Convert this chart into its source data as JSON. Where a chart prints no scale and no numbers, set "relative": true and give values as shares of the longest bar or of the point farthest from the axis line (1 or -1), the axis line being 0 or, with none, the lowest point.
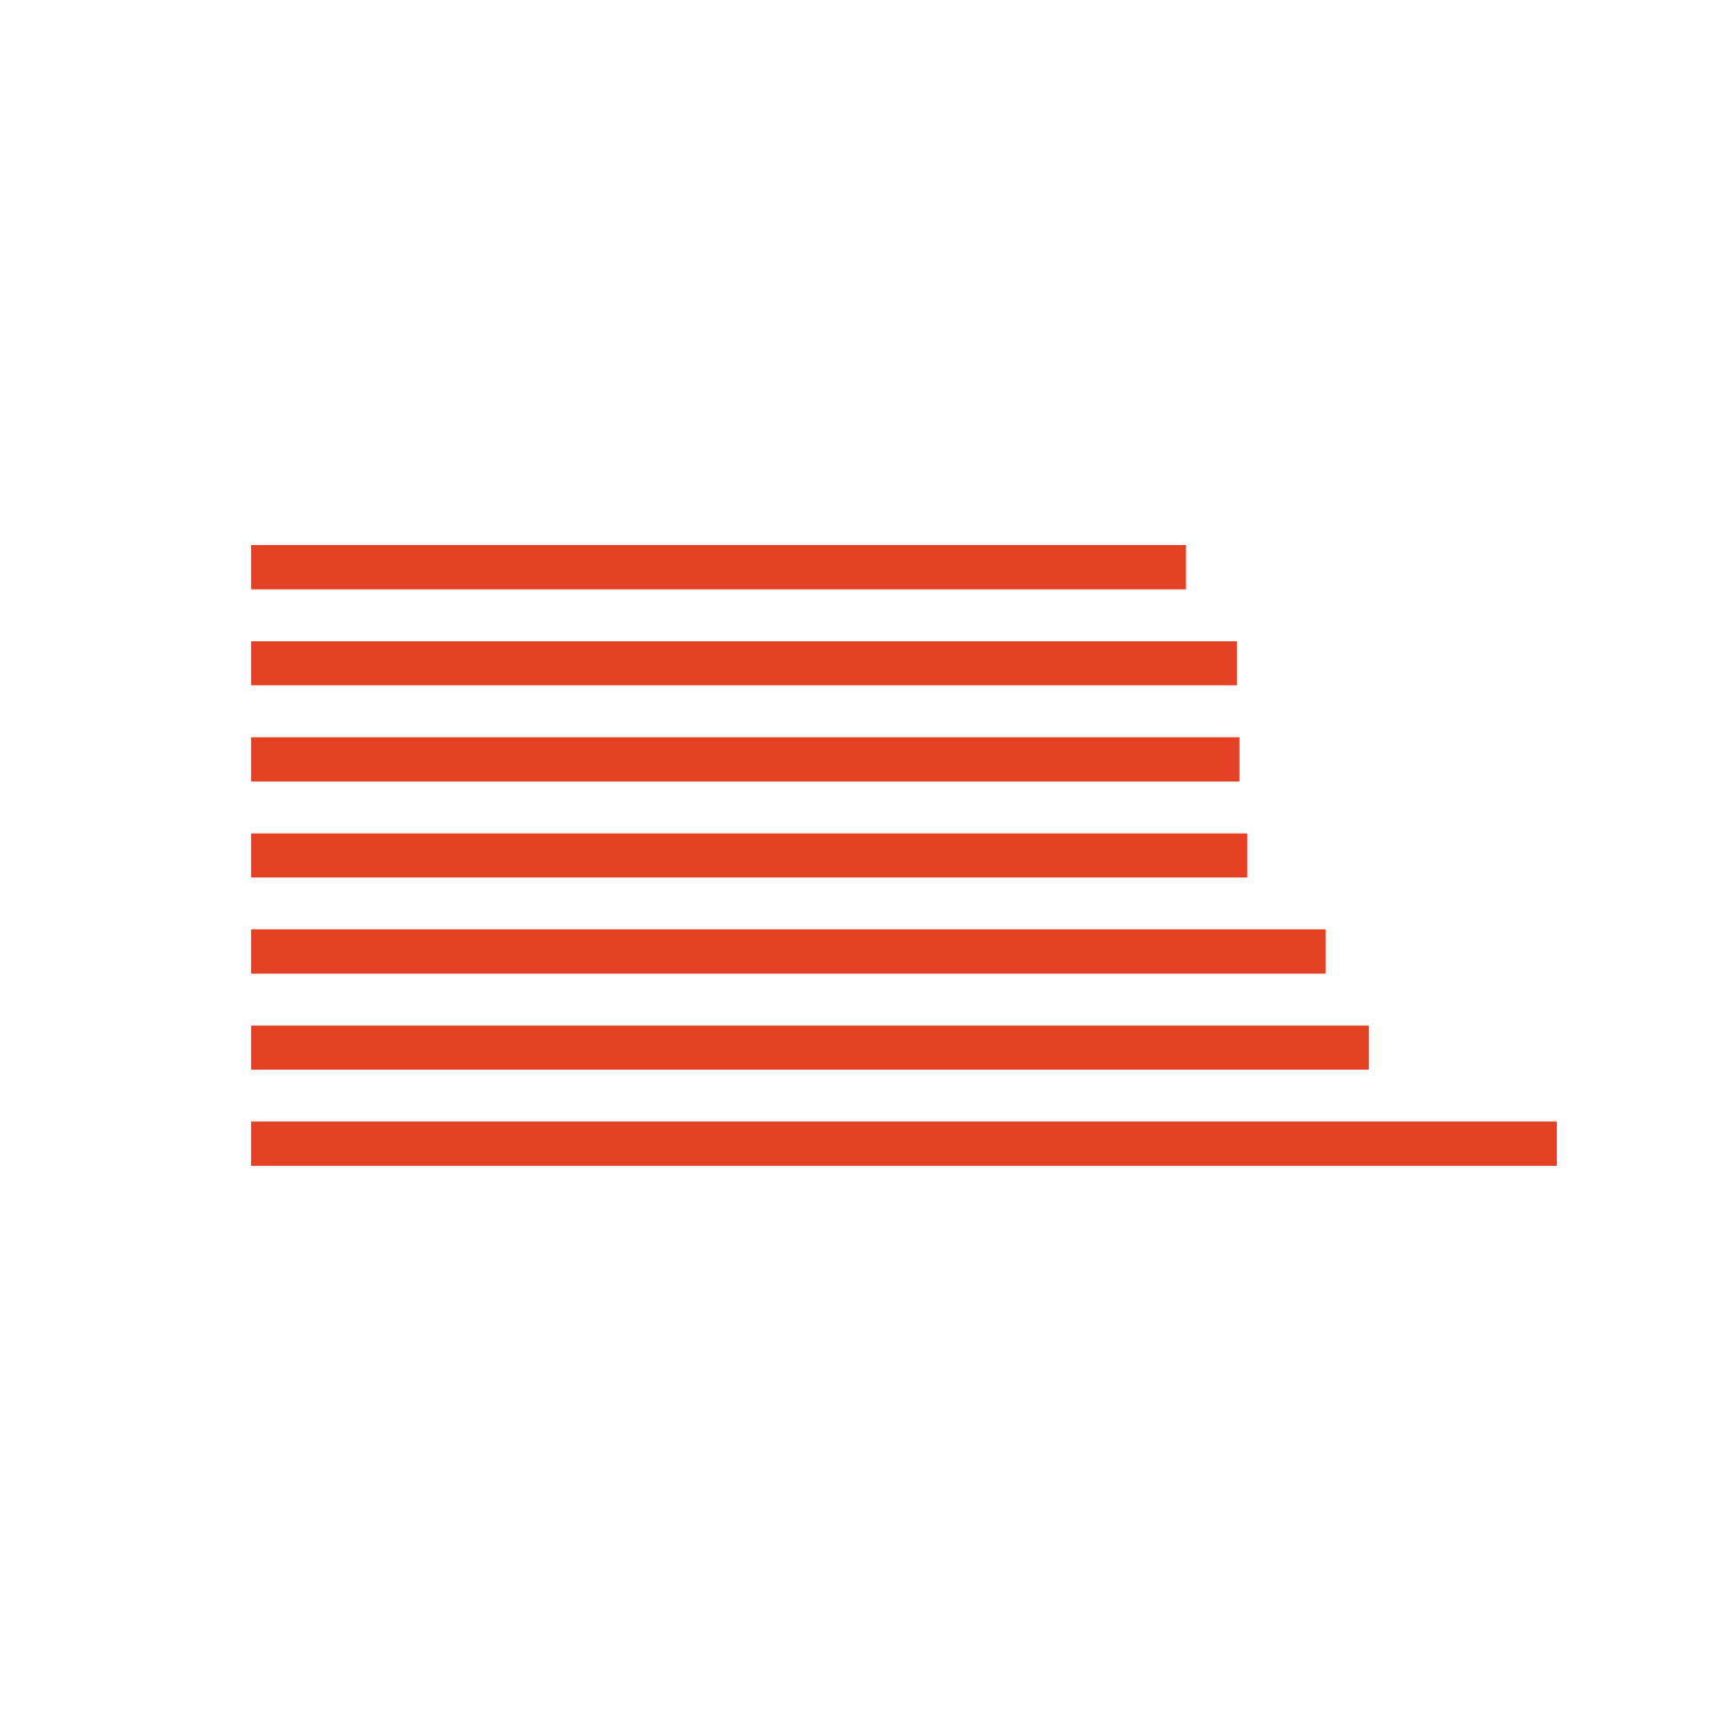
{
  "chart_data": {
    "type": "bar",
    "orientation": "horizontal",
    "relative": true,
    "categories": [
      null,
      null,
      null,
      null,
      null,
      null,
      null
    ],
    "values": [
      0.716,
      0.755,
      0.757,
      0.763,
      0.823,
      0.856,
      1
    ],
    "color": "#e44023"
  }
}
